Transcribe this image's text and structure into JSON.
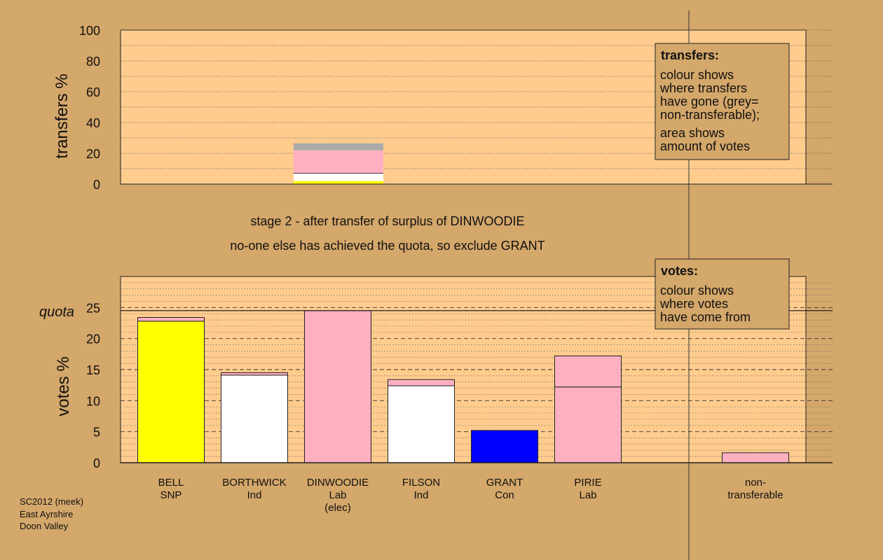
{
  "chart_data": [
    {
      "type": "bar",
      "subtype": "stacked",
      "ylabel": "transfers %",
      "ylim": [
        0,
        100
      ],
      "yticks": [
        0,
        20,
        40,
        60,
        80,
        100
      ],
      "bar_category": "DINWOODIE",
      "segments": [
        {
          "source": "SNP",
          "value": 2,
          "color": "#ffff00"
        },
        {
          "source": "Ind",
          "value": 5,
          "color": "#ffffff"
        },
        {
          "source": "Lab",
          "value": 15,
          "color": "#ffb0c0"
        },
        {
          "source": "non-transferable",
          "value": 4.5,
          "color": "#aaaaaa"
        }
      ],
      "legend": {
        "title": "transfers:",
        "lines": [
          "colour shows",
          "where transfers",
          "have gone (grey=",
          "non-transferable);",
          "area shows",
          "amount of votes"
        ]
      }
    },
    {
      "type": "bar",
      "subtype": "stacked",
      "ylabel": "votes %",
      "ylim": [
        0,
        30
      ],
      "yticks": [
        0,
        5,
        10,
        15,
        20,
        25
      ],
      "quota": 24.5,
      "quota_label": "quota",
      "categories": [
        {
          "name": "BELL",
          "party": "SNP",
          "extra": "",
          "segments": [
            {
              "value": 22.8,
              "color": "#ffff00"
            },
            {
              "value": 0.6,
              "color": "#ffb0c0"
            }
          ]
        },
        {
          "name": "BORTHWICK",
          "party": "Ind",
          "extra": "",
          "segments": [
            {
              "value": 14.1,
              "color": "#ffffff"
            },
            {
              "value": 0.4,
              "color": "#ffb0c0"
            }
          ]
        },
        {
          "name": "DINWOODIE",
          "party": "Lab",
          "extra": "(elec)",
          "segments": [
            {
              "value": 24.5,
              "color": "#ffb0c0"
            }
          ]
        },
        {
          "name": "FILSON",
          "party": "Ind",
          "extra": "",
          "segments": [
            {
              "value": 12.4,
              "color": "#ffffff"
            },
            {
              "value": 1.0,
              "color": "#ffb0c0"
            }
          ]
        },
        {
          "name": "GRANT",
          "party": "Con",
          "extra": "",
          "segments": [
            {
              "value": 5.2,
              "color": "#0000ff"
            }
          ]
        },
        {
          "name": "PIRIE",
          "party": "Lab",
          "extra": "",
          "segments": [
            {
              "value": 12.2,
              "color": "#ffb0c0"
            },
            {
              "value": 5.0,
              "color": "#ffb0c0"
            }
          ]
        },
        {
          "name": "non-",
          "party": "transferable",
          "extra": "",
          "segments": [
            {
              "value": 1.6,
              "color": "#ffb0c0"
            }
          ]
        }
      ],
      "legend": {
        "title": "votes:",
        "lines": [
          "colour shows",
          "where votes",
          "have come from"
        ]
      }
    }
  ],
  "captions": [
    "stage 2 - after transfer of surplus of DINWOODIE",
    "no-one else has achieved the quota, so exclude GRANT"
  ],
  "footnote": [
    "SC2012 (meek)",
    "East Ayrshire",
    "Doon Valley"
  ],
  "colors": {
    "background": "#d4a76a",
    "plot_area": "#ffcc8e"
  }
}
